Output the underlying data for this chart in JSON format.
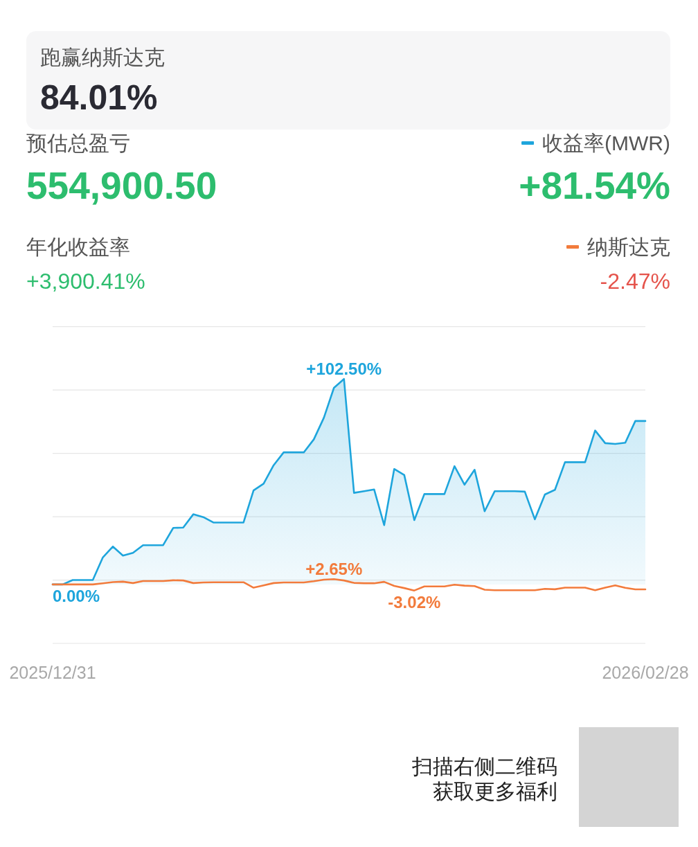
{
  "chart_data": {
    "type": "line",
    "x": [
      "2025-12-31",
      "2026-01-01",
      "2026-01-02",
      "2026-01-03",
      "2026-01-04",
      "2026-01-05",
      "2026-01-06",
      "2026-01-07",
      "2026-01-08",
      "2026-01-09",
      "2026-01-10",
      "2026-01-11",
      "2026-01-12",
      "2026-01-13",
      "2026-01-14",
      "2026-01-15",
      "2026-01-16",
      "2026-01-17",
      "2026-01-18",
      "2026-01-19",
      "2026-01-20",
      "2026-01-21",
      "2026-01-22",
      "2026-01-23",
      "2026-01-24",
      "2026-01-25",
      "2026-01-26",
      "2026-01-27",
      "2026-01-28",
      "2026-01-29",
      "2026-01-30",
      "2026-01-31",
      "2026-02-01",
      "2026-02-02",
      "2026-02-03",
      "2026-02-04",
      "2026-02-05",
      "2026-02-06",
      "2026-02-07",
      "2026-02-08",
      "2026-02-09",
      "2026-02-10",
      "2026-02-11",
      "2026-02-12",
      "2026-02-13",
      "2026-02-14",
      "2026-02-15",
      "2026-02-16",
      "2026-02-17",
      "2026-02-18",
      "2026-02-19",
      "2026-02-20",
      "2026-02-21",
      "2026-02-22",
      "2026-02-23",
      "2026-02-24",
      "2026-02-25",
      "2026-02-26",
      "2026-02-27",
      "2026-02-28"
    ],
    "xlim": [
      "2025-12-31",
      "2026-02-28"
    ],
    "xticks": [
      {
        "value": "2025-12-31",
        "label": "2025/12/31"
      },
      {
        "value": "2026-02-28",
        "label": "2026/02/28"
      }
    ],
    "ylim": [
      -29.4,
      128.6
    ],
    "yticks": [
      {
        "value": 128.6,
        "label": null
      },
      {
        "value": 97.0,
        "label": null
      },
      {
        "value": 65.4,
        "label": null
      },
      {
        "value": 33.8,
        "label": null
      },
      {
        "value": 2.2,
        "label": null
      },
      {
        "value": -29.4,
        "label": null
      }
    ],
    "grid": "y",
    "legend": "top right",
    "series": [
      {
        "name": "收益率(MWR)",
        "type": "area",
        "color": "#1ea5dc",
        "values": [
          0,
          0,
          2.2,
          2.2,
          2.2,
          13.5,
          18.9,
          14.4,
          15.8,
          19.6,
          19.6,
          19.6,
          28.2,
          28.4,
          35.0,
          33.6,
          30.9,
          30.9,
          30.9,
          30.9,
          46.9,
          50.3,
          59.5,
          65.9,
          65.9,
          65.9,
          72.4,
          83.2,
          98.1,
          102.5,
          45.7,
          46.5,
          47.4,
          29.6,
          57.6,
          54.6,
          32.1,
          45.1,
          45.1,
          45.1,
          59.0,
          49.8,
          57.2,
          36.5,
          46.5,
          46.5,
          46.5,
          46.3,
          32.5,
          44.9,
          47.2,
          61.0,
          61.0,
          61.0,
          76.8,
          70.5,
          70.1,
          70.7,
          81.54,
          81.54
        ],
        "value_labels": [
          "0.00%",
          null,
          null,
          null,
          null,
          null,
          null,
          null,
          null,
          null,
          null,
          null,
          null,
          null,
          null,
          null,
          null,
          null,
          null,
          null,
          null,
          null,
          null,
          null,
          null,
          null,
          null,
          null,
          null,
          "+102.50%",
          null,
          null,
          null,
          null,
          null,
          null,
          null,
          null,
          null,
          null,
          null,
          null,
          null,
          null,
          null,
          null,
          null,
          null,
          null,
          null,
          null,
          null,
          null,
          null,
          null,
          null,
          null,
          null,
          null,
          null
        ]
      },
      {
        "name": "纳斯达克",
        "color": "#f27b3c",
        "values": [
          0,
          0,
          0,
          0,
          0,
          0.6,
          1.2,
          1.4,
          0.7,
          1.7,
          1.7,
          1.7,
          2.1,
          2.0,
          0.7,
          1.0,
          1.1,
          1.1,
          1.1,
          1.1,
          -1.6,
          -0.5,
          0.7,
          1.0,
          1.0,
          1.0,
          1.6,
          2.4,
          2.65,
          2.0,
          0.8,
          0.6,
          0.6,
          1.3,
          -0.7,
          -1.8,
          -3.02,
          -1.0,
          -1.0,
          -1.0,
          -0.1,
          -0.6,
          -0.8,
          -2.6,
          -2.9,
          -2.9,
          -2.9,
          -2.9,
          -2.9,
          -2.2,
          -2.4,
          -1.6,
          -1.6,
          -1.6,
          -2.9,
          -1.6,
          -0.5,
          -1.7,
          -2.47,
          -2.47
        ],
        "value_labels": [
          null,
          null,
          null,
          null,
          null,
          null,
          null,
          null,
          null,
          null,
          null,
          null,
          null,
          null,
          null,
          null,
          null,
          null,
          null,
          null,
          null,
          null,
          null,
          null,
          null,
          null,
          null,
          null,
          "+2.65%",
          null,
          null,
          null,
          null,
          null,
          null,
          null,
          "-3.02%",
          null,
          null,
          null,
          null,
          null,
          null,
          null,
          null,
          null,
          null,
          null,
          null,
          null,
          null,
          null,
          null,
          null,
          null,
          null,
          null,
          null,
          null,
          null
        ]
      }
    ],
    "annotations": [
      "跑赢纳斯达克",
      "84.01%",
      "预估总盈亏",
      "554,900.50",
      "+81.54%",
      "年化收益率",
      "+3,900.41%",
      "-2.47%",
      "扫描右侧二维码",
      "获取更多福利"
    ]
  }
}
